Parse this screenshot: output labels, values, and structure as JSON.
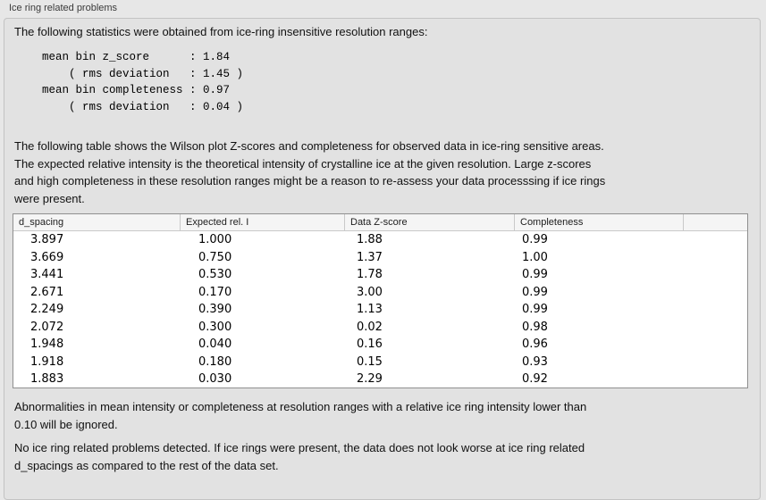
{
  "panel": {
    "title": "Ice ring related problems"
  },
  "intro": "The following statistics were obtained from ice-ring insensitive resolution ranges:",
  "stats_block": "mean bin z_score      : 1.84\n    ( rms deviation   : 1.45 )\nmean bin completeness : 0.97\n    ( rms deviation   : 0.04 )",
  "table_description": "The following table shows the Wilson plot Z-scores and completeness for observed data in ice-ring sensitive areas.\nThe expected relative intensity is the theoretical intensity of crystalline ice at the given resolution. Large z-scores\nand high completeness in these resolution ranges might be a reason to re-assess your data processsing if ice rings\nwere present.",
  "table": {
    "columns": [
      "d_spacing",
      "Expected rel. I",
      "Data Z-score",
      "Completeness"
    ],
    "rows": [
      [
        "3.897",
        "1.000",
        "1.88",
        "0.99"
      ],
      [
        "3.669",
        "0.750",
        "1.37",
        "1.00"
      ],
      [
        "3.441",
        "0.530",
        "1.78",
        "0.99"
      ],
      [
        "2.671",
        "0.170",
        "3.00",
        "0.99"
      ],
      [
        "2.249",
        "0.390",
        "1.13",
        "0.99"
      ],
      [
        "2.072",
        "0.300",
        "0.02",
        "0.98"
      ],
      [
        "1.948",
        "0.040",
        "0.16",
        "0.96"
      ],
      [
        "1.918",
        "0.180",
        "0.15",
        "0.93"
      ],
      [
        "1.883",
        "0.030",
        "2.29",
        "0.92"
      ]
    ]
  },
  "note_ignored": "Abnormalities in mean intensity or completeness at resolution ranges with a relative ice ring intensity lower than\n0.10 will be ignored.",
  "conclusion": "No ice ring related problems detected. If ice rings were present, the data does not look worse at ice ring related\nd_spacings as compared to the rest of the data set."
}
